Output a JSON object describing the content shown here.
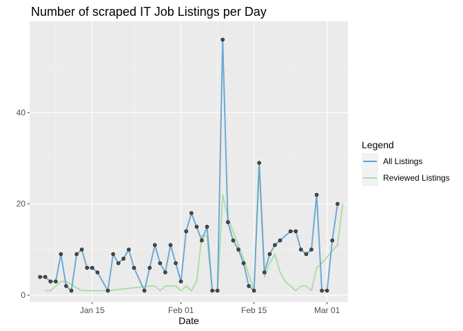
{
  "chart_data": {
    "type": "line",
    "title": "Number of scraped IT Job Listings per Day",
    "xlabel": "Date",
    "ylabel": "",
    "ylim": [
      -1.5,
      60
    ],
    "xlim": [
      "2023-01-03",
      "2023-03-05"
    ],
    "grid": true,
    "legend": {
      "title": "Legend",
      "position": "right"
    },
    "x_ticks": [
      {
        "date": "2023-01-15",
        "label": "Jan 15"
      },
      {
        "date": "2023-02-01",
        "label": "Feb 01"
      },
      {
        "date": "2023-02-15",
        "label": "Feb 15"
      },
      {
        "date": "2023-03-01",
        "label": "Mar 01"
      }
    ],
    "x_minor_ticks": [
      "2023-01-08",
      "2023-01-23",
      "2023-02-08",
      "2023-02-22"
    ],
    "y_ticks": [
      0,
      20,
      40
    ],
    "y_minor_ticks": [
      10,
      30,
      50
    ],
    "series": [
      {
        "name": "All Listings",
        "color": "#5fa2d0",
        "points": true,
        "data": [
          [
            "2023-01-05",
            4
          ],
          [
            "2023-01-06",
            4
          ],
          [
            "2023-01-07",
            3
          ],
          [
            "2023-01-08",
            3
          ],
          [
            "2023-01-09",
            9
          ],
          [
            "2023-01-10",
            2
          ],
          [
            "2023-01-11",
            1
          ],
          [
            "2023-01-12",
            9
          ],
          [
            "2023-01-13",
            10
          ],
          [
            "2023-01-14",
            6
          ],
          [
            "2023-01-15",
            6
          ],
          [
            "2023-01-16",
            5
          ],
          [
            "2023-01-18",
            1
          ],
          [
            "2023-01-19",
            9
          ],
          [
            "2023-01-20",
            7
          ],
          [
            "2023-01-21",
            8
          ],
          [
            "2023-01-22",
            10
          ],
          [
            "2023-01-23",
            6
          ],
          [
            "2023-01-25",
            1
          ],
          [
            "2023-01-26",
            6
          ],
          [
            "2023-01-27",
            11
          ],
          [
            "2023-01-28",
            7
          ],
          [
            "2023-01-29",
            5
          ],
          [
            "2023-01-30",
            11
          ],
          [
            "2023-01-31",
            7
          ],
          [
            "2023-02-01",
            3
          ],
          [
            "2023-02-02",
            14
          ],
          [
            "2023-02-03",
            18
          ],
          [
            "2023-02-04",
            15
          ],
          [
            "2023-02-05",
            12
          ],
          [
            "2023-02-06",
            15
          ],
          [
            "2023-02-07",
            1
          ],
          [
            "2023-02-08",
            1
          ],
          [
            "2023-02-09",
            56
          ],
          [
            "2023-02-10",
            16
          ],
          [
            "2023-02-11",
            12
          ],
          [
            "2023-02-12",
            10
          ],
          [
            "2023-02-13",
            7
          ],
          [
            "2023-02-14",
            2
          ],
          [
            "2023-02-15",
            1
          ],
          [
            "2023-02-16",
            29
          ],
          [
            "2023-02-17",
            5
          ],
          [
            "2023-02-18",
            9
          ],
          [
            "2023-02-19",
            11
          ],
          [
            "2023-02-20",
            12
          ],
          [
            "2023-02-22",
            14
          ],
          [
            "2023-02-23",
            14
          ],
          [
            "2023-02-24",
            10
          ],
          [
            "2023-02-25",
            9
          ],
          [
            "2023-02-26",
            10
          ],
          [
            "2023-02-27",
            22
          ],
          [
            "2023-02-28",
            1
          ],
          [
            "2023-03-01",
            1
          ],
          [
            "2023-03-02",
            12
          ],
          [
            "2023-03-03",
            20
          ]
        ]
      },
      {
        "name": "Reviewed Listings",
        "color": "#a6dba0",
        "points": false,
        "data": [
          [
            "2023-01-06",
            1
          ],
          [
            "2023-01-07",
            1
          ],
          [
            "2023-01-09",
            3
          ],
          [
            "2023-01-10",
            3
          ],
          [
            "2023-01-13",
            1
          ],
          [
            "2023-01-15",
            1
          ],
          [
            "2023-01-18",
            1
          ],
          [
            "2023-01-26",
            2
          ],
          [
            "2023-01-27",
            2
          ],
          [
            "2023-01-28",
            1
          ],
          [
            "2023-01-29",
            2
          ],
          [
            "2023-01-30",
            2
          ],
          [
            "2023-01-31",
            2
          ],
          [
            "2023-02-01",
            1
          ],
          [
            "2023-02-02",
            2
          ],
          [
            "2023-02-03",
            1
          ],
          [
            "2023-02-04",
            3
          ],
          [
            "2023-02-05",
            13
          ],
          [
            "2023-02-06",
            13
          ],
          [
            "2023-02-07",
            1
          ],
          [
            "2023-02-08",
            1
          ],
          [
            "2023-02-09",
            22
          ],
          [
            "2023-02-10",
            17
          ],
          [
            "2023-02-13",
            8
          ],
          [
            "2023-02-15",
            1
          ],
          [
            "2023-02-16",
            29
          ],
          [
            "2023-02-17",
            4
          ],
          [
            "2023-02-18",
            7
          ],
          [
            "2023-02-19",
            9
          ],
          [
            "2023-02-20",
            5
          ],
          [
            "2023-02-21",
            3
          ],
          [
            "2023-02-22",
            2
          ],
          [
            "2023-02-23",
            1
          ],
          [
            "2023-02-24",
            2
          ],
          [
            "2023-02-25",
            2
          ],
          [
            "2023-02-26",
            1
          ],
          [
            "2023-02-27",
            6
          ],
          [
            "2023-02-28",
            7
          ],
          [
            "2023-03-03",
            11
          ],
          [
            "2023-03-04",
            20
          ]
        ]
      }
    ]
  }
}
